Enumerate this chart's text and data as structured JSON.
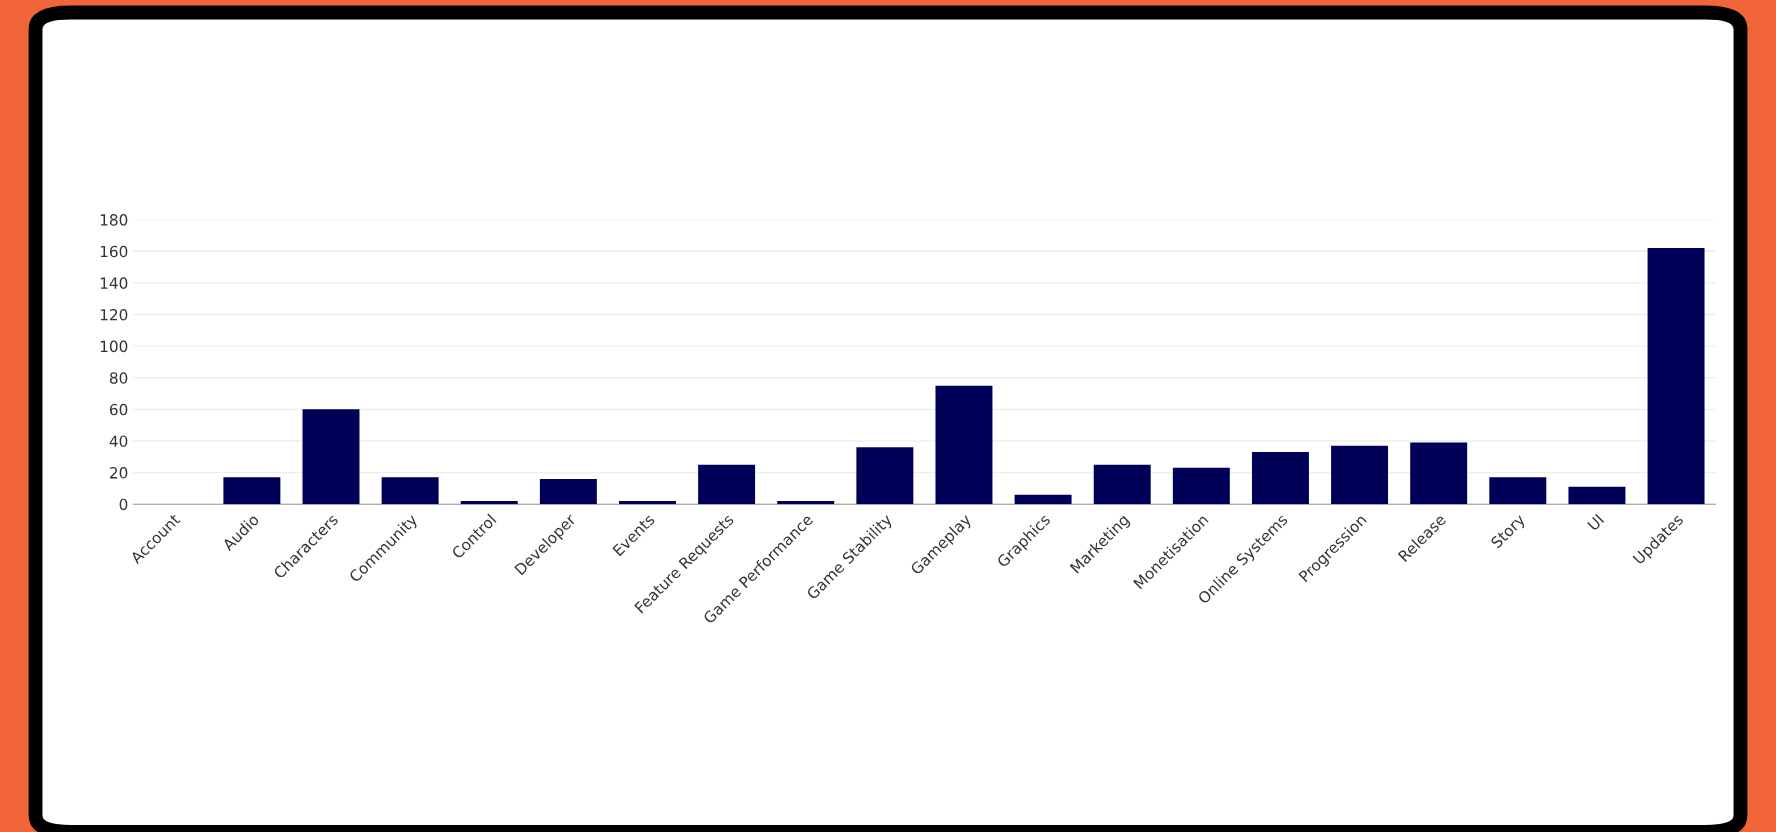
{
  "chart_data": {
    "type": "bar",
    "categories": [
      "Account",
      "Audio",
      "Characters",
      "Community",
      "Control",
      "Developer",
      "Events",
      "Feature Requests",
      "Game Performance",
      "Game Stability",
      "Gameplay",
      "Graphics",
      "Marketing",
      "Monetisation",
      "Online Systems",
      "Progression",
      "Release",
      "Story",
      "UI",
      "Updates"
    ],
    "values": [
      0,
      17,
      60,
      17,
      2,
      16,
      2,
      25,
      2,
      36,
      75,
      6,
      25,
      23,
      33,
      37,
      39,
      17,
      11,
      162
    ],
    "color": "#000058",
    "ylim": [
      0,
      180
    ],
    "yticks": [
      0,
      20,
      40,
      60,
      80,
      100,
      120,
      140,
      160,
      180
    ],
    "grid": "y"
  }
}
